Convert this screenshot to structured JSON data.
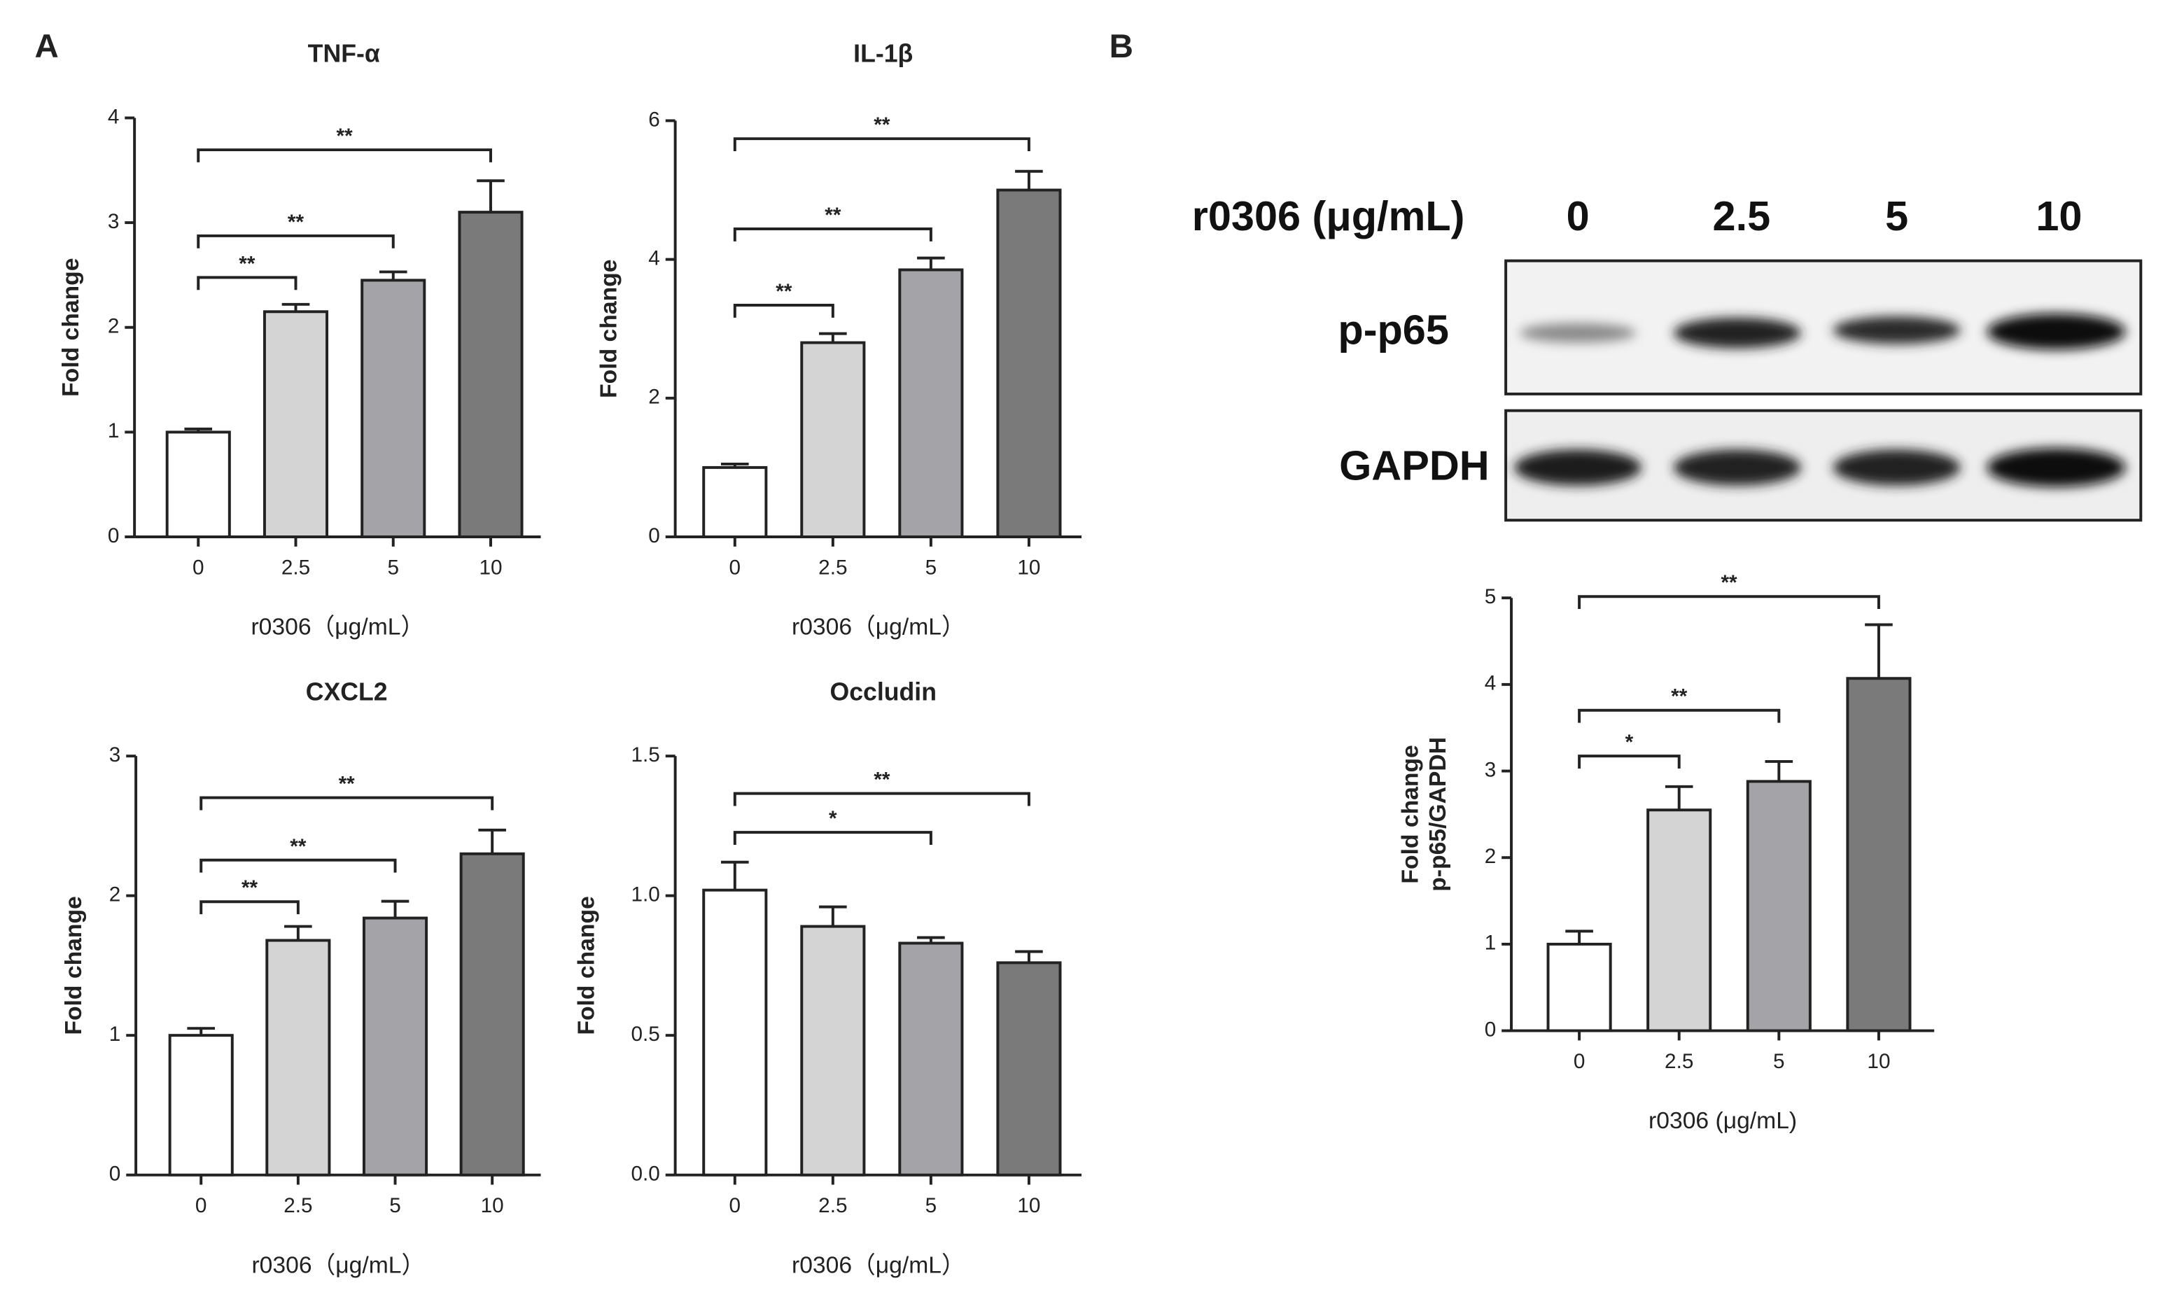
{
  "panels": [
    "A",
    "B"
  ],
  "blot": {
    "header_label": "r0306 (μg/mL)",
    "lanes": [
      "0",
      "2.5",
      "5",
      "10"
    ],
    "rows": [
      "p-p65",
      "GAPDH"
    ]
  },
  "chart_data": [
    {
      "type": "bar",
      "title": "TNF-α",
      "ylabel": "Fold change",
      "xlabel": "r0306（μg/mL）",
      "categories": [
        "0",
        "2.5",
        "5",
        "10"
      ],
      "values": [
        1.0,
        2.15,
        2.45,
        3.1
      ],
      "errors": [
        0.03,
        0.07,
        0.08,
        0.3
      ],
      "colors": [
        "#ffffff",
        "#d4d4d4",
        "#a3a3a8",
        "#7a7a7a"
      ],
      "ylim": [
        0,
        4
      ],
      "yticks": [
        0,
        1,
        2,
        3,
        4
      ],
      "significance": [
        {
          "from": "0",
          "to": "2.5",
          "label": "**"
        },
        {
          "from": "0",
          "to": "5",
          "label": "**"
        },
        {
          "from": "0",
          "to": "10",
          "label": "**"
        }
      ]
    },
    {
      "type": "bar",
      "title": "IL-1β",
      "ylabel": "Fold change",
      "xlabel": "r0306（μg/mL）",
      "categories": [
        "0",
        "2.5",
        "5",
        "10"
      ],
      "values": [
        1.0,
        2.8,
        3.85,
        5.0
      ],
      "errors": [
        0.05,
        0.13,
        0.17,
        0.27
      ],
      "colors": [
        "#ffffff",
        "#d4d4d4",
        "#a3a3a8",
        "#7a7a7a"
      ],
      "ylim": [
        0,
        6
      ],
      "yticks": [
        0,
        2,
        4,
        6
      ],
      "significance": [
        {
          "from": "0",
          "to": "2.5",
          "label": "**"
        },
        {
          "from": "0",
          "to": "5",
          "label": "**"
        },
        {
          "from": "0",
          "to": "10",
          "label": "**"
        }
      ]
    },
    {
      "type": "bar",
      "title": "CXCL2",
      "ylabel": "Fold change",
      "xlabel": "r0306（μg/mL）",
      "categories": [
        "0",
        "2.5",
        "5",
        "10"
      ],
      "values": [
        1.0,
        1.68,
        1.84,
        2.3
      ],
      "errors": [
        0.05,
        0.1,
        0.12,
        0.17
      ],
      "colors": [
        "#ffffff",
        "#d4d4d4",
        "#a3a3a8",
        "#7a7a7a"
      ],
      "ylim": [
        0,
        3
      ],
      "yticks": [
        0,
        1,
        2,
        3
      ],
      "significance": [
        {
          "from": "0",
          "to": "2.5",
          "label": "**"
        },
        {
          "from": "0",
          "to": "5",
          "label": "**"
        },
        {
          "from": "0",
          "to": "10",
          "label": "**"
        }
      ]
    },
    {
      "type": "bar",
      "title": "Occludin",
      "ylabel": "Fold change",
      "xlabel": "r0306（μg/mL）",
      "categories": [
        "0",
        "2.5",
        "5",
        "10"
      ],
      "values": [
        1.02,
        0.89,
        0.83,
        0.76
      ],
      "errors": [
        0.1,
        0.07,
        0.02,
        0.04
      ],
      "colors": [
        "#ffffff",
        "#d4d4d4",
        "#a3a3a8",
        "#7a7a7a"
      ],
      "ylim": [
        0,
        1.5
      ],
      "yticks": [
        {
          "value": 0,
          "label": "0.0"
        },
        0.5,
        {
          "value": 1,
          "label": "1.0"
        },
        1.5
      ],
      "significance": [
        {
          "from": "0",
          "to": "5",
          "label": "*"
        },
        {
          "from": "0",
          "to": "10",
          "label": "**"
        }
      ]
    },
    {
      "type": "bar",
      "ylabel": [
        "Fold change",
        "p-p65/GAPDH"
      ],
      "xlabel": "r0306 (μg/mL)",
      "categories": [
        "0",
        "2.5",
        "5",
        "10"
      ],
      "values": [
        1.0,
        2.55,
        2.88,
        4.07
      ],
      "errors": [
        0.15,
        0.27,
        0.23,
        0.62
      ],
      "colors": [
        "#ffffff",
        "#d4d4d4",
        "#a3a3a8",
        "#7a7a7a"
      ],
      "ylim": [
        0,
        5
      ],
      "yticks": [
        0,
        1,
        2,
        3,
        4,
        5
      ],
      "significance": [
        {
          "from": "0",
          "to": "2.5",
          "label": "*"
        },
        {
          "from": "0",
          "to": "5",
          "label": "**"
        },
        {
          "from": "0",
          "to": "10",
          "label": "**"
        }
      ]
    }
  ]
}
